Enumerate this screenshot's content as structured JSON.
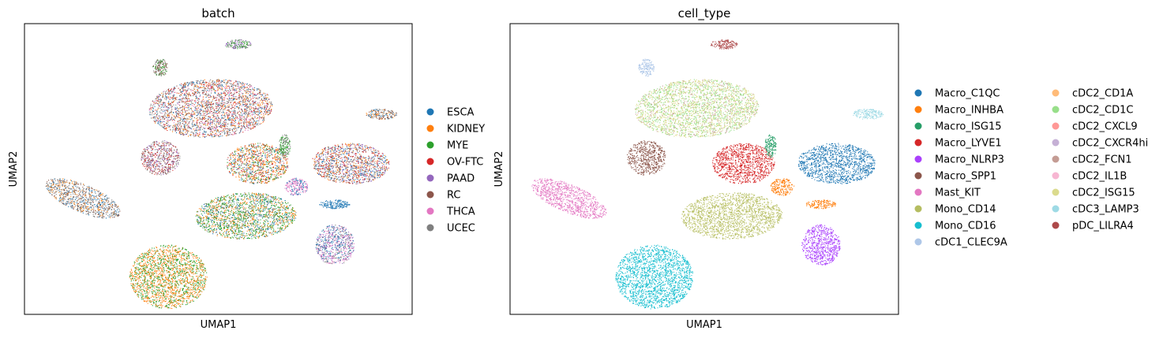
{
  "chart_data": [
    {
      "type": "scatter",
      "title": "batch",
      "xlabel": "UMAP1",
      "ylabel": "UMAP2",
      "xlim": [
        -12,
        14
      ],
      "ylim": [
        -14,
        12
      ],
      "grid": false,
      "legend_position": "right",
      "ticks_shown": false,
      "series": [
        {
          "name": "ESCA",
          "color": "#1f77b4"
        },
        {
          "name": "KIDNEY",
          "color": "#ff7f0e"
        },
        {
          "name": "MYE",
          "color": "#2ca02c"
        },
        {
          "name": "OV-FTC",
          "color": "#d62728"
        },
        {
          "name": "PAAD",
          "color": "#9467bd"
        },
        {
          "name": "RC",
          "color": "#8c564b"
        },
        {
          "name": "THCA",
          "color": "#e377c2"
        },
        {
          "name": "UCEC",
          "color": "#7f7f7f"
        }
      ]
    },
    {
      "type": "scatter",
      "title": "cell_type",
      "xlabel": "UMAP1",
      "ylabel": "UMAP2",
      "xlim": [
        -12,
        14
      ],
      "ylim": [
        -14,
        12
      ],
      "grid": false,
      "legend_position": "right",
      "legend_columns": 2,
      "ticks_shown": false,
      "series": [
        {
          "name": "Macro_C1QC",
          "color": "#1f77b4"
        },
        {
          "name": "Macro_INHBA",
          "color": "#ff7f0e"
        },
        {
          "name": "Macro_ISG15",
          "color": "#279e68"
        },
        {
          "name": "Macro_LYVE1",
          "color": "#d62728"
        },
        {
          "name": "Macro_NLRP3",
          "color": "#aa40fc"
        },
        {
          "name": "Macro_SPP1",
          "color": "#8c564b"
        },
        {
          "name": "Mast_KIT",
          "color": "#e377c2"
        },
        {
          "name": "Mono_CD14",
          "color": "#b5bd61"
        },
        {
          "name": "Mono_CD16",
          "color": "#17becf"
        },
        {
          "name": "cDC1_CLEC9A",
          "color": "#aec7e8"
        },
        {
          "name": "cDC2_CD1A",
          "color": "#ffbb78"
        },
        {
          "name": "cDC2_CD1C",
          "color": "#98df8a"
        },
        {
          "name": "cDC2_CXCL9",
          "color": "#ff9896"
        },
        {
          "name": "cDC2_CXCR4hi",
          "color": "#c5b0d5"
        },
        {
          "name": "cDC2_FCN1",
          "color": "#c49c94"
        },
        {
          "name": "cDC2_IL1B",
          "color": "#f7b6d2"
        },
        {
          "name": "cDC2_ISG15",
          "color": "#dbdb8d"
        },
        {
          "name": "cDC3_LAMP3",
          "color": "#9edae5"
        },
        {
          "name": "pDC_LILRA4",
          "color": "#ad494a"
        }
      ]
    }
  ]
}
